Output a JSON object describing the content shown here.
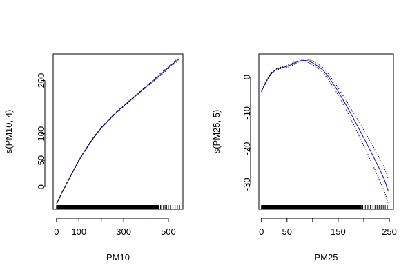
{
  "chart_data": [
    {
      "type": "line",
      "xlabel": "PM10",
      "ylabel": "s(PM10, 4)",
      "xlim": [
        -15,
        565
      ],
      "ylim": [
        -42,
        250
      ],
      "xticks": [
        0,
        100,
        300,
        500
      ],
      "yticks": [
        0,
        50,
        100,
        200
      ],
      "xtick_labels": [
        "0",
        "100",
        "300",
        "500"
      ],
      "ytick_labels": [
        "0",
        "50",
        "100",
        "200"
      ],
      "extra_xticks": [
        200,
        400
      ],
      "grid": false,
      "legend": "none",
      "series": [
        {
          "role": "fit",
          "color": "#1f1fb4",
          "style": "solid",
          "x": [
            0,
            25,
            50,
            75,
            100,
            125,
            150,
            175,
            200,
            225,
            250,
            275,
            300,
            325,
            350,
            375,
            400,
            425,
            450,
            475,
            500,
            525,
            550
          ],
          "y": [
            -32,
            -10,
            10,
            30,
            50,
            67,
            83,
            98,
            111,
            122,
            133,
            143,
            152,
            161,
            170,
            179,
            188,
            197,
            206,
            215,
            224,
            233,
            241
          ]
        },
        {
          "role": "upper",
          "color": "#000000",
          "style": "dotted",
          "x": [
            0,
            25,
            50,
            75,
            100,
            125,
            150,
            175,
            200,
            225,
            250,
            275,
            300,
            325,
            350,
            375,
            400,
            425,
            450,
            475,
            500,
            525,
            550
          ],
          "y": [
            -31,
            -9,
            11,
            31,
            51,
            68,
            84,
            99,
            112,
            123,
            134,
            144,
            153,
            162,
            171,
            180,
            189,
            198,
            208,
            217,
            226,
            235,
            244
          ]
        },
        {
          "role": "lower",
          "color": "#000000",
          "style": "dotted",
          "x": [
            0,
            25,
            50,
            75,
            100,
            125,
            150,
            175,
            200,
            225,
            250,
            275,
            300,
            325,
            350,
            375,
            400,
            425,
            450,
            475,
            500,
            525,
            550
          ],
          "y": [
            -33,
            -11,
            9,
            29,
            49,
            66,
            82,
            97,
            110,
            121,
            132,
            142,
            151,
            160,
            169,
            178,
            187,
            195,
            204,
            213,
            222,
            231,
            238
          ]
        }
      ],
      "rug": {
        "dense_from": 0,
        "dense_to": 460,
        "sparse": [
          465,
          470,
          478,
          485,
          492,
          500,
          510,
          520,
          530,
          540,
          550
        ]
      }
    },
    {
      "type": "line",
      "xlabel": "PM25",
      "ylabel": "s(PM25, 5)",
      "xlim": [
        -5,
        258
      ],
      "ylim": [
        -37,
        6.5
      ],
      "xticks": [
        0,
        50,
        150,
        250
      ],
      "yticks": [
        0,
        -10,
        -20,
        -30
      ],
      "xtick_labels": [
        "0",
        "50",
        "150",
        "250"
      ],
      "ytick_labels": [
        "0",
        "-10",
        "-20",
        "-30"
      ],
      "extra_xticks": [
        100,
        200
      ],
      "grid": false,
      "legend": "none",
      "series": [
        {
          "role": "fit",
          "color": "#1f1fb4",
          "style": "solid",
          "x": [
            0,
            10,
            20,
            30,
            40,
            50,
            60,
            70,
            80,
            90,
            100,
            110,
            120,
            130,
            140,
            150,
            160,
            170,
            180,
            190,
            200,
            210,
            220,
            230,
            240,
            248
          ],
          "y": [
            -4,
            -1,
            1.2,
            2.2,
            2.7,
            3,
            3.6,
            4.3,
            4.7,
            4.6,
            4,
            3.1,
            2,
            0.3,
            -1.8,
            -4,
            -6.5,
            -9,
            -11.6,
            -14.3,
            -17,
            -19.8,
            -22.6,
            -25.5,
            -28.6,
            -32
          ]
        },
        {
          "role": "upper",
          "color": "#000000",
          "style": "dotted",
          "x": [
            0,
            10,
            20,
            30,
            40,
            50,
            60,
            70,
            80,
            90,
            100,
            110,
            120,
            130,
            140,
            150,
            160,
            170,
            180,
            190,
            200,
            210,
            220,
            230,
            240,
            248
          ],
          "y": [
            -3.8,
            -0.8,
            1.4,
            2.4,
            2.9,
            3.3,
            3.9,
            4.6,
            5,
            5,
            4.5,
            3.7,
            2.7,
            1.1,
            -0.9,
            -3,
            -5.3,
            -7.6,
            -10,
            -12.4,
            -14.8,
            -17.3,
            -19.8,
            -22.4,
            -25.3,
            -28.5
          ]
        },
        {
          "role": "lower",
          "color": "#000000",
          "style": "dotted",
          "x": [
            0,
            10,
            20,
            30,
            40,
            50,
            60,
            70,
            80,
            90,
            100,
            110,
            120,
            130,
            140,
            150,
            160,
            170,
            180,
            190,
            200,
            210,
            220,
            230,
            240,
            248
          ],
          "y": [
            -4.2,
            -1.2,
            1,
            2,
            2.5,
            2.7,
            3.3,
            4,
            4.4,
            4.2,
            3.5,
            2.5,
            1.3,
            -0.5,
            -2.7,
            -5,
            -7.7,
            -10.4,
            -13.2,
            -16.2,
            -19.2,
            -22.3,
            -25.4,
            -28.6,
            -31.9,
            -35.5
          ]
        }
      ],
      "rug": {
        "dense_from": 0,
        "dense_to": 195,
        "sparse": [
          198,
          203,
          208,
          213,
          218,
          222,
          226,
          230,
          234,
          238,
          242,
          246
        ]
      }
    }
  ]
}
